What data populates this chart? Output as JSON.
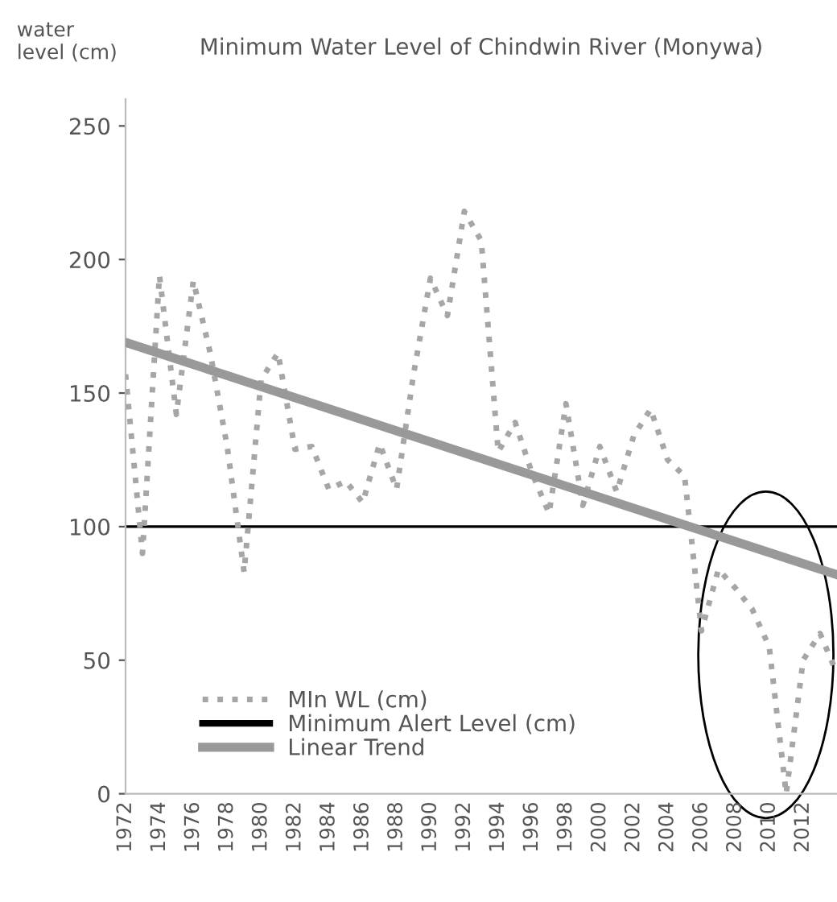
{
  "chart_data": {
    "type": "line",
    "title": "Minimum Water Level of Chindwin River (Monywa)",
    "ylabel": "water\nlevel (cm)",
    "x": [
      1972,
      1973,
      1974,
      1975,
      1976,
      1977,
      1978,
      1979,
      1980,
      1981,
      1982,
      1983,
      1984,
      1985,
      1986,
      1987,
      1988,
      1989,
      1990,
      1991,
      1992,
      1993,
      1994,
      1995,
      1996,
      1997,
      1998,
      1999,
      2000,
      2001,
      2002,
      2003,
      2004,
      2005,
      2006,
      2007,
      2008,
      2009,
      2010,
      2011,
      2012,
      2013,
      2014
    ],
    "series": [
      {
        "name": "MIn WL (cm)",
        "color": "#a6a6a6",
        "line_style": "dotted",
        "values": [
          157,
          90,
          194,
          142,
          192,
          165,
          130,
          83,
          155,
          165,
          129,
          130,
          114,
          117,
          109,
          131,
          114,
          157,
          193,
          179,
          218,
          207,
          128,
          139,
          120,
          105,
          146,
          108,
          130,
          113,
          134,
          144,
          125,
          119,
          61,
          84,
          77,
          69,
          55,
          0,
          50,
          60,
          45
        ]
      },
      {
        "name": "Linear Trend",
        "type": "line",
        "color": "#999999",
        "line_style": "solid",
        "x": [
          1972,
          2014
        ],
        "values": [
          169,
          82
        ]
      }
    ],
    "ref_lines": [
      {
        "axis": "y",
        "value": 100,
        "label": "Minimum Alert Level (cm)",
        "color": "#000000",
        "line_style": "solid"
      }
    ],
    "xlim": [
      1972,
      2014
    ],
    "xticks": [
      1972,
      1974,
      1976,
      1978,
      1980,
      1982,
      1984,
      1986,
      1988,
      1990,
      1992,
      1994,
      1996,
      1998,
      2000,
      2002,
      2004,
      2006,
      2008,
      2010,
      2012
    ],
    "ylim": [
      0,
      260
    ],
    "yticks": [
      0,
      50,
      100,
      150,
      200,
      250
    ],
    "grid": false,
    "legend": "bottom left",
    "marker": "none"
  }
}
